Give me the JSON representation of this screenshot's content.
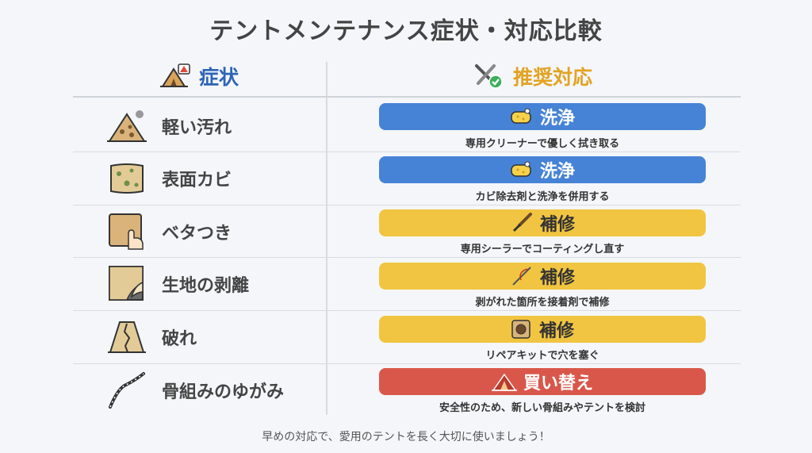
{
  "title": "テントメンテナンス症状・対応比較",
  "headers": {
    "symptom": "症状",
    "action": "推奨対応"
  },
  "rows": [
    {
      "symptom": "軽い汚れ",
      "symptom_icon": "dirty-tent-icon",
      "action": "洗浄",
      "action_icon": "sponge-icon",
      "action_color": "#4683d6",
      "description": "専用クリーナーで優しく拭き取る"
    },
    {
      "symptom": "表面カビ",
      "symptom_icon": "mold-fabric-icon",
      "action": "洗浄",
      "action_icon": "sponge-icon",
      "action_color": "#4683d6",
      "description": "カビ除去剤と洗浄を併用する"
    },
    {
      "symptom": "ベタつき",
      "symptom_icon": "sticky-touch-icon",
      "action": "補修",
      "action_icon": "brush-icon",
      "action_color": "#f1c541",
      "description": "専用シーラーでコーティングし直す"
    },
    {
      "symptom": "生地の剥離",
      "symptom_icon": "peeling-fabric-icon",
      "action": "補修",
      "action_icon": "needle-icon",
      "action_color": "#f1c541",
      "description": "剥がれた箇所を接着剤で補修"
    },
    {
      "symptom": "破れ",
      "symptom_icon": "torn-tent-icon",
      "action": "補修",
      "action_icon": "patch-icon",
      "action_color": "#f1c541",
      "description": "リペアキットで穴を塞ぐ"
    },
    {
      "symptom": "骨組みのゆがみ",
      "symptom_icon": "bent-pole-icon",
      "action": "買い替え",
      "action_icon": "new-tent-icon",
      "action_color": "#d9574a",
      "description": "安全性のため、新しい骨組みやテントを検討"
    }
  ],
  "footer": "早めの対応で、愛用のテントを長く大切に使いましょう！"
}
